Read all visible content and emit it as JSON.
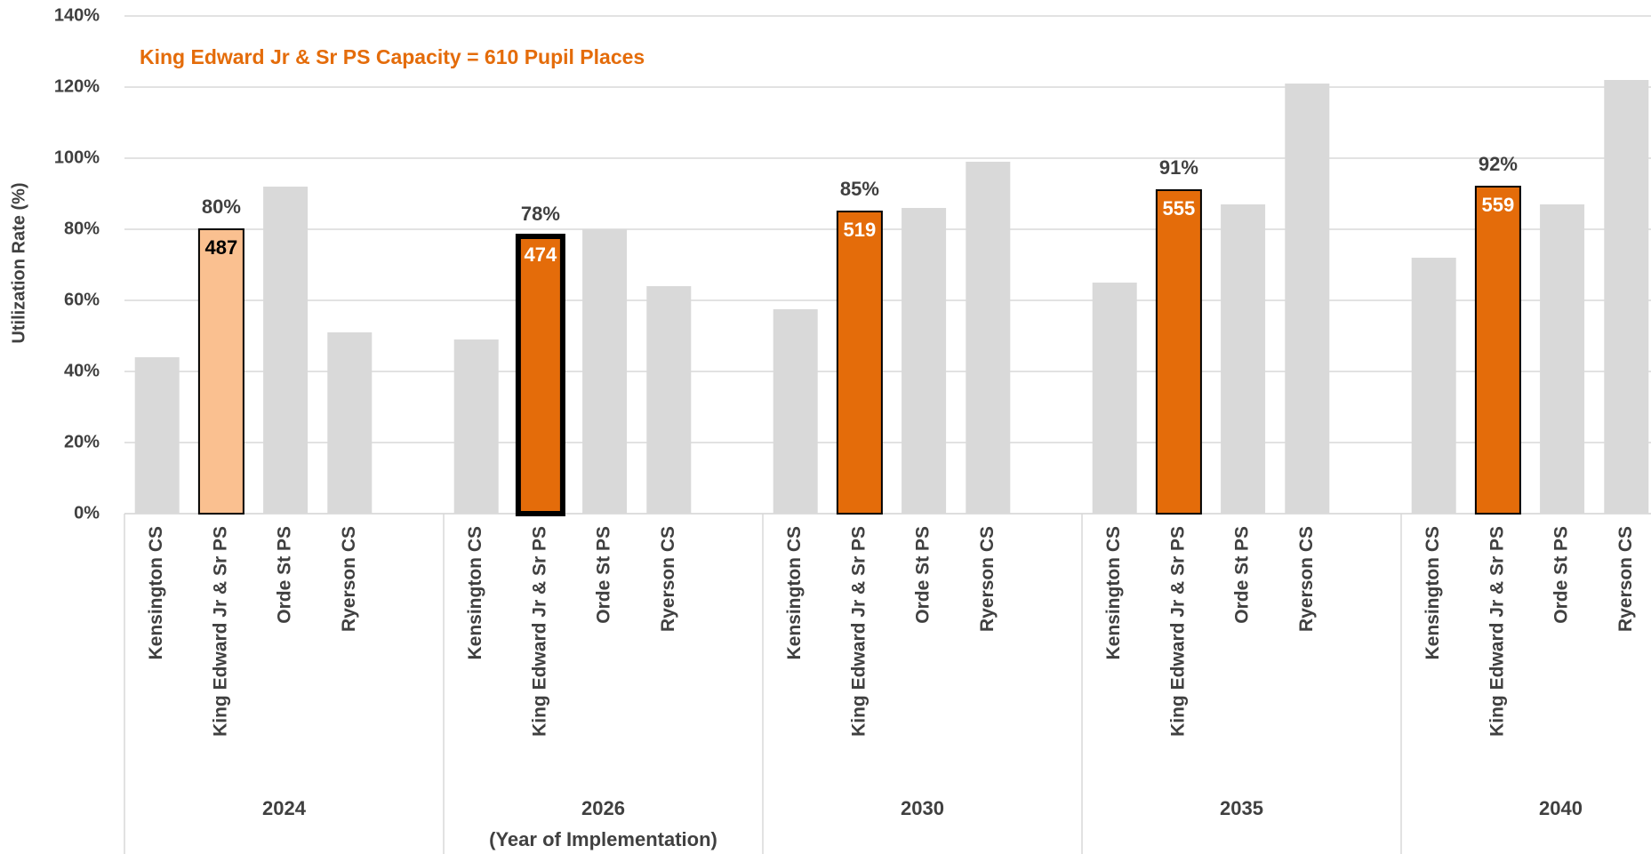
{
  "chart_data": {
    "type": "bar",
    "annotation": "King Edward Jr & Sr PS Capacity = 610 Pupil Places",
    "y_label": "Utilization Rate (%)",
    "schools": [
      "Kensington CS",
      "King Edward Jr & Sr PS",
      "Orde St PS",
      "Ryerson CS"
    ],
    "color": "#d9d9d9",
    "highlight_school": "King Edward Jr & Sr PS",
    "groups": [
      {
        "name": "2024",
        "values": [
          44,
          80,
          92,
          51
        ],
        "value_label": "80%",
        "enrollment": 487,
        "highlight_color": "#fac090",
        "enrollment_color": "#000000"
      },
      {
        "name": "2026",
        "note": "(Year of Implementation)",
        "values": [
          49,
          78,
          80,
          64
        ],
        "value_label": "78%",
        "enrollment": 474,
        "highlight_color": "#e46c0a",
        "enrollment_color": "#ffffff",
        "emphasis": true
      },
      {
        "name": "2030",
        "values": [
          57.5,
          85,
          86,
          99
        ],
        "value_label": "85%",
        "enrollment": 519,
        "highlight_color": "#e46c0a",
        "enrollment_color": "#ffffff"
      },
      {
        "name": "2035",
        "values": [
          65,
          91,
          87,
          121
        ],
        "value_label": "91%",
        "enrollment": 555,
        "highlight_color": "#e46c0a",
        "enrollment_color": "#ffffff"
      },
      {
        "name": "2040",
        "values": [
          72,
          92,
          87,
          122
        ],
        "value_label": "92%",
        "enrollment": 559,
        "highlight_color": "#e46c0a",
        "enrollment_color": "#ffffff"
      }
    ],
    "ylim": [
      0,
      140
    ],
    "yticks": [
      {
        "value": 0,
        "label": "0%"
      },
      {
        "value": 20,
        "label": "20%"
      },
      {
        "value": 40,
        "label": "40%"
      },
      {
        "value": 60,
        "label": "60%"
      },
      {
        "value": 80,
        "label": "80%"
      },
      {
        "value": 100,
        "label": "100%"
      },
      {
        "value": 120,
        "label": "120%"
      },
      {
        "value": 140,
        "label": "140%"
      }
    ],
    "grid": true
  }
}
